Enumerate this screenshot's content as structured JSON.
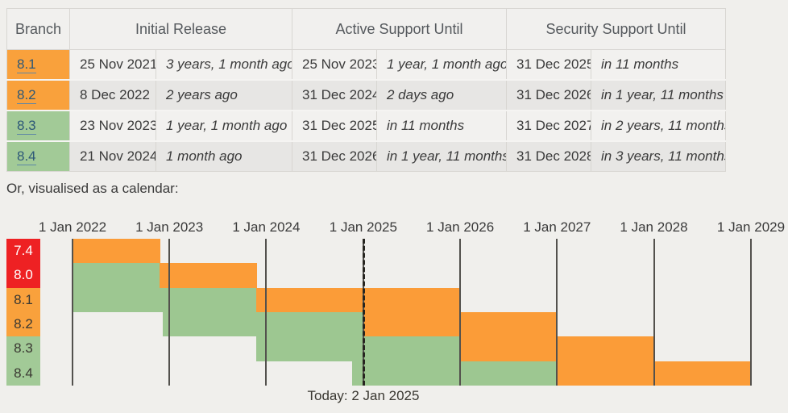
{
  "table": {
    "headers": {
      "branch": "Branch",
      "initial": "Initial Release",
      "active": "Active Support Until",
      "security": "Security Support Until"
    },
    "rows": [
      {
        "branch": "8.1",
        "status": "orange",
        "initial_date": "25 Nov 2021",
        "initial_rel": "3 years, 1 month ago",
        "active_date": "25 Nov 2023",
        "active_rel": "1 year, 1 month ago",
        "security_date": "31 Dec 2025",
        "security_rel": "in 11 months"
      },
      {
        "branch": "8.2",
        "status": "orange",
        "initial_date": "8 Dec 2022",
        "initial_rel": "2 years ago",
        "active_date": "31 Dec 2024",
        "active_rel": "2 days ago",
        "security_date": "31 Dec 2026",
        "security_rel": "in 1 year, 11 months"
      },
      {
        "branch": "8.3",
        "status": "green",
        "initial_date": "23 Nov 2023",
        "initial_rel": "1 year, 1 month ago",
        "active_date": "31 Dec 2025",
        "active_rel": "in 11 months",
        "security_date": "31 Dec 2027",
        "security_rel": "in 2 years, 11 months"
      },
      {
        "branch": "8.4",
        "status": "green",
        "initial_date": "21 Nov 2024",
        "initial_rel": "1 month ago",
        "active_date": "31 Dec 2026",
        "active_rel": "in 1 year, 11 months",
        "security_date": "31 Dec 2028",
        "security_rel": "in 3 years, 11 months"
      }
    ]
  },
  "calendar_intro": "Or, visualised as a calendar:",
  "chart_data": {
    "type": "gantt-calendar",
    "x_range": [
      "1 Jan 2022",
      "1 Jan 2029"
    ],
    "ticks": [
      {
        "label": "1 Jan 2022",
        "pos": 0.0
      },
      {
        "label": "1 Jan 2023",
        "pos": 0.1427
      },
      {
        "label": "1 Jan 2024",
        "pos": 0.2855
      },
      {
        "label": "1 Jan 2025",
        "pos": 0.4286
      },
      {
        "label": "1 Jan 2026",
        "pos": 0.5714
      },
      {
        "label": "1 Jan 2027",
        "pos": 0.7141
      },
      {
        "label": "1 Jan 2028",
        "pos": 0.8569
      },
      {
        "label": "1 Jan 2029",
        "pos": 1.0
      }
    ],
    "today": {
      "label": "Today: 2 Jan 2025",
      "pos": 0.429
    },
    "rows": [
      {
        "branch": "7.4",
        "label_color": "red",
        "segments": [
          {
            "phase": "security",
            "from": 0.0,
            "to": 0.1294
          }
        ]
      },
      {
        "branch": "8.0",
        "label_color": "red",
        "segments": [
          {
            "phase": "active",
            "from": 0.0,
            "to": 0.1287
          },
          {
            "phase": "security",
            "from": 0.1287,
            "to": 0.2714
          }
        ]
      },
      {
        "branch": "8.1",
        "label_color": "orange",
        "segments": [
          {
            "phase": "active",
            "from": 0.0,
            "to": 0.271
          },
          {
            "phase": "security",
            "from": 0.271,
            "to": 0.571
          }
        ]
      },
      {
        "branch": "8.2",
        "label_color": "orange",
        "segments": [
          {
            "phase": "active",
            "from": 0.1334,
            "to": 0.4282
          },
          {
            "phase": "security",
            "from": 0.4282,
            "to": 0.7137
          }
        ]
      },
      {
        "branch": "8.3",
        "label_color": "green",
        "segments": [
          {
            "phase": "active",
            "from": 0.2702,
            "to": 0.571
          },
          {
            "phase": "security",
            "from": 0.571,
            "to": 0.8565
          }
        ]
      },
      {
        "branch": "8.4",
        "label_color": "green",
        "segments": [
          {
            "phase": "active",
            "from": 0.4126,
            "to": 0.7137
          },
          {
            "phase": "security",
            "from": 0.7137,
            "to": 0.9996
          }
        ]
      }
    ],
    "colors": {
      "active": "#9dc791",
      "security": "#fb9c38",
      "eol": "#ee2123"
    },
    "legend_position": "none",
    "grid": true
  }
}
